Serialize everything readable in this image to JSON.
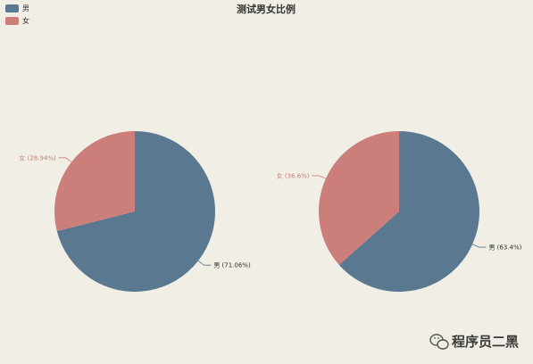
{
  "colors": {
    "background": "#f0eee5",
    "male": "#5b7891",
    "female": "#cc7e7a"
  },
  "legend": {
    "items": [
      {
        "label": "男",
        "color": "#5b7891"
      },
      {
        "label": "女",
        "color": "#cc7e7a"
      }
    ]
  },
  "chart_data": {
    "type": "pie",
    "title": "测试男女比例",
    "legend_position": "top-left",
    "charts": [
      {
        "slices": [
          {
            "label": "男",
            "value": 71.06,
            "display": "男 (71.06%)",
            "color": "#5b7891"
          },
          {
            "label": "女",
            "value": 28.94,
            "display": "女 (28.94%)",
            "color": "#cc7e7a"
          }
        ]
      },
      {
        "slices": [
          {
            "label": "男",
            "value": 63.4,
            "display": "男 (63.4%)",
            "color": "#5b7891"
          },
          {
            "label": "女",
            "value": 36.6,
            "display": "女 (36.6%)",
            "color": "#cc7e7a"
          }
        ]
      }
    ]
  },
  "watermark": {
    "text": "程序员二黑",
    "icon": "wechat-icon"
  }
}
